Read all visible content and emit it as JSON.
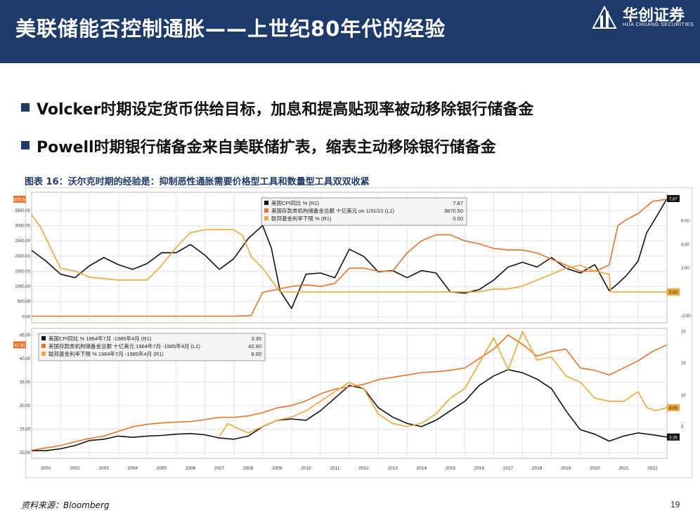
{
  "header": {
    "title": "美联储能否控制通胀——上世纪80年代的经验",
    "logo_cn": "华创证券",
    "logo_en": "HUA CHUANG SECURITIES"
  },
  "bullets": [
    "Volcker时期设定货币供给目标，加息和提高贴现率被动移除银行储备金",
    "Powell时期银行储备金来自美联储扩表，缩表主动移除银行储备金"
  ],
  "figure_caption": "图表 16：沃尔克时期的经验是：抑制恶性通胀需要价格型工具和数量型工具双双收紧",
  "source": "资料来源：Bloomberg",
  "page_number": "19",
  "colors": {
    "cpi": "#111111",
    "reserves": "#e8742c",
    "ffr": "#f0a63a",
    "header": "#1d3a6b"
  },
  "chart_data": [
    {
      "type": "line",
      "panel": "top",
      "x_categories": [
        "2001",
        "2002",
        "2003",
        "2004",
        "2005",
        "2006",
        "2007",
        "2008",
        "2009",
        "2010",
        "2011",
        "2012",
        "2013",
        "2014",
        "2015",
        "2016",
        "2017",
        "2018",
        "2019",
        "2020",
        "2021",
        "2022"
      ],
      "left_axis": {
        "ticks": [
          "0.00",
          "500.00",
          "1000.00",
          "1500.00",
          "2000.00",
          "2500.00",
          "3000.00",
          "3500.00"
        ],
        "range": [
          -200,
          4100
        ]
      },
      "right_axis": {
        "ticks": [
          "-2.00",
          "2.00",
          "4.00",
          "6.00"
        ],
        "range": [
          -2.6,
          8.4
        ]
      },
      "legend": [
        {
          "label": "美国CPI同比 %  (R1)",
          "value": "7.87"
        },
        {
          "label": "美国存款类机构储备金总额 十亿美元 on 1/31/22 (L1)",
          "value": "3870.50"
        },
        {
          "label": "联邦基金利率下限 % (R1)",
          "value": "0.00"
        }
      ],
      "axis_badges": {
        "left": "3870.50",
        "right_top": "7.87",
        "right_bottom": "0.00"
      },
      "series": [
        {
          "name": "美国CPI同比 %",
          "axis": "right",
          "x": [
            0,
            0.5,
            1,
            1.5,
            2,
            2.5,
            3,
            3.5,
            4,
            4.5,
            5,
            5.5,
            6,
            6.5,
            7,
            7.5,
            8,
            8.3,
            8.6,
            9,
            9.5,
            10,
            10.5,
            11,
            11.5,
            12,
            12.5,
            13,
            13.5,
            14,
            14.5,
            15,
            15.5,
            16,
            16.5,
            17,
            17.5,
            18,
            18.5,
            19,
            19.5,
            20,
            20.3,
            20.6,
            21,
            21.3,
            21.6,
            22
          ],
          "values": [
            3.5,
            2.6,
            1.5,
            1.2,
            2.2,
            2.9,
            2.3,
            1.9,
            2.4,
            3.3,
            3.3,
            4.0,
            3.1,
            1.9,
            2.8,
            4.5,
            5.6,
            3.7,
            0.1,
            -1.4,
            1.5,
            1.6,
            1.2,
            3.6,
            3.0,
            1.7,
            1.8,
            1.2,
            1.8,
            1.6,
            0.0,
            -0.1,
            0.2,
            1.0,
            2.1,
            2.5,
            2.1,
            2.9,
            2.0,
            1.6,
            2.3,
            0.1,
            0.7,
            1.4,
            2.6,
            5.0,
            6.2,
            7.87
          ]
        },
        {
          "name": "美国存款类机构储备金总额 十亿美元",
          "axis": "left",
          "x": [
            0,
            7,
            7.6,
            8,
            8.5,
            9,
            9.5,
            10,
            10.5,
            11,
            11.5,
            12,
            12.5,
            13,
            13.5,
            14,
            14.5,
            15,
            15.5,
            16,
            16.5,
            17,
            17.5,
            18,
            18.5,
            19,
            19.5,
            20,
            20.3,
            20.6,
            21,
            21.5,
            22
          ],
          "values": [
            20,
            20,
            40,
            800,
            900,
            1000,
            1050,
            1000,
            1100,
            1600,
            1600,
            1500,
            1500,
            2100,
            2500,
            2700,
            2700,
            2500,
            2400,
            2250,
            2200,
            2200,
            2100,
            1900,
            1700,
            1500,
            1500,
            1700,
            3000,
            3200,
            3400,
            3800,
            3870.5
          ]
        },
        {
          "name": "联邦基金利率下限 %",
          "axis": "right",
          "x": [
            0,
            0.3,
            0.6,
            1,
            1.5,
            2,
            3,
            3.5,
            4,
            4.5,
            5,
            5.5,
            6,
            6.5,
            7,
            7.3,
            7.6,
            8,
            8.3,
            8.6,
            15,
            15.5,
            16,
            16.5,
            17,
            17.5,
            18,
            18.5,
            19,
            19.5,
            20,
            20.05,
            22
          ],
          "values": [
            6.5,
            5.5,
            4.0,
            2.0,
            1.75,
            1.25,
            1.0,
            1.0,
            1.0,
            2.25,
            3.75,
            5.0,
            5.25,
            5.25,
            5.25,
            4.75,
            3.0,
            2.0,
            1.0,
            0.0,
            0.0,
            0.0,
            0.25,
            0.25,
            0.5,
            1.0,
            1.5,
            2.0,
            2.25,
            1.75,
            1.5,
            0.0,
            0.0
          ]
        }
      ]
    },
    {
      "type": "line",
      "panel": "bottom",
      "left_axis": {
        "ticks": [
          "20.00",
          "25.00",
          "30.00",
          "35.00",
          "40.00",
          "45.00"
        ],
        "range": [
          18.8,
          46.4
        ]
      },
      "right_axis": {
        "ticks": [
          "5",
          "10",
          "15",
          "20"
        ],
        "range": [
          0,
          20.5
        ]
      },
      "legend": [
        {
          "label": "美国CPI同比 % 1964年7月 -1985年4月  (R1)",
          "value": "3.35"
        },
        {
          "label": "美国存款类机构储备金总额 十亿美元 1964年7月 -1985年4月  (L1)",
          "value": "42.90"
        },
        {
          "label": "联邦基金利率下限 % 1964年7月 -1985年4月  (R1)",
          "value": "8.00"
        }
      ],
      "axis_badges": {
        "left": "42.90",
        "right_mid": "8.00",
        "right_low": "3.35"
      },
      "series": [
        {
          "name": "美国CPI同比 % 1964年7月 -1985年4月",
          "axis": "right",
          "x": [
            0,
            0.5,
            1,
            1.5,
            2,
            2.5,
            3,
            3.5,
            4,
            4.5,
            5,
            5.5,
            6,
            6.5,
            7,
            7.5,
            8,
            8.5,
            9,
            9.5,
            10,
            10.5,
            11,
            11.5,
            12,
            12.5,
            13,
            13.5,
            14,
            14.5,
            15,
            15.5,
            16,
            16.5,
            17,
            17.5,
            18,
            18.5,
            19,
            19.5,
            20,
            20.5,
            21,
            21.5,
            22
          ],
          "values": [
            1.2,
            1.2,
            1.5,
            2.0,
            2.8,
            3.0,
            3.5,
            3.3,
            3.5,
            3.6,
            3.8,
            3.9,
            3.7,
            3.2,
            3.0,
            3.5,
            5.0,
            6.0,
            6.2,
            6.0,
            7.5,
            9.5,
            11.5,
            11.0,
            8.0,
            6.5,
            5.5,
            5.0,
            6.0,
            7.5,
            9.0,
            11.5,
            13.0,
            14.0,
            13.5,
            12.5,
            11.0,
            7.5,
            4.5,
            3.8,
            2.7,
            3.5,
            4.0,
            3.7,
            3.35
          ]
        },
        {
          "name": "美国存款类机构储备金总额 十亿美元 1964年7月 -1985年4月",
          "axis": "left",
          "x": [
            0,
            0.5,
            1,
            1.5,
            2,
            2.5,
            3,
            3.5,
            4,
            4.5,
            5,
            5.5,
            6,
            6.5,
            7,
            7.5,
            8,
            8.5,
            9,
            9.5,
            10,
            10.5,
            11,
            11.5,
            12,
            12.5,
            13,
            13.5,
            14,
            14.5,
            15,
            15.5,
            16,
            16.5,
            17,
            17.5,
            18,
            18.5,
            19,
            19.5,
            20,
            20.5,
            21,
            21.5,
            22
          ],
          "values": [
            20.5,
            21.0,
            21.5,
            22.3,
            23.0,
            23.5,
            24.5,
            25.5,
            26.0,
            26.3,
            26.5,
            26.6,
            27.0,
            27.5,
            27.5,
            27.8,
            28.5,
            29.5,
            30.0,
            31.0,
            32.5,
            33.5,
            34.0,
            34.5,
            35.5,
            36.0,
            36.5,
            37.0,
            37.2,
            37.5,
            38.0,
            40.0,
            42.0,
            45.0,
            43.0,
            40.5,
            41.5,
            42.0,
            38.0,
            37.5,
            36.5,
            38.0,
            39.5,
            41.5,
            42.9
          ]
        },
        {
          "name": "联邦基金利率下限 % 1964年7月 -1985年4月",
          "axis": "right",
          "x": [
            6.5,
            6.8,
            7,
            7.5,
            8,
            8.5,
            9,
            9.5,
            10,
            10.5,
            11,
            11.5,
            12,
            12.5,
            13,
            13.5,
            14,
            14.5,
            15,
            15.5,
            16,
            16.5,
            17,
            17.5,
            18,
            18.5,
            19,
            19.5,
            20,
            20.5,
            21,
            21.3,
            21.6,
            22
          ],
          "values": [
            3.5,
            5.5,
            5.0,
            4.0,
            5.0,
            6.0,
            6.5,
            7.5,
            9.0,
            10.5,
            12.0,
            11.0,
            7.0,
            5.5,
            5.0,
            5.5,
            7.0,
            9.5,
            11.0,
            15.0,
            19.0,
            14.0,
            20.0,
            15.5,
            16.0,
            13.0,
            12.0,
            9.5,
            9.0,
            9.0,
            10.5,
            8.0,
            7.5,
            8.0
          ]
        }
      ]
    }
  ]
}
